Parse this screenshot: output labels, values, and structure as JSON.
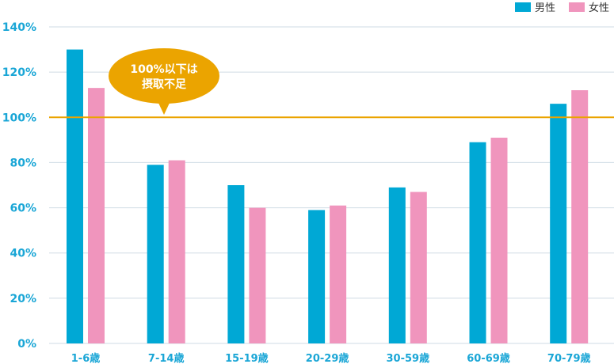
{
  "chart_data": {
    "type": "bar",
    "categories": [
      "1-6歳",
      "7-14歳",
      "15-19歳",
      "20-29歳",
      "30-59歳",
      "60-69歳",
      "70-79歳"
    ],
    "series": [
      {
        "name": "男性",
        "values": [
          130,
          79,
          70,
          59,
          69,
          89,
          106
        ]
      },
      {
        "name": "女性",
        "values": [
          113,
          81,
          60,
          61,
          67,
          91,
          112
        ]
      }
    ],
    "y_ticks": [
      "0%",
      "20%",
      "40%",
      "60%",
      "80%",
      "100%",
      "120%",
      "140%"
    ],
    "ylim": [
      0,
      140
    ],
    "grid": true,
    "legend_position": "top-right",
    "reference_line": {
      "value": 100
    },
    "annotation": {
      "line1": "100%以下は",
      "line2": "摂取不足"
    },
    "colors": {
      "male": "#00a8d5",
      "female": "#f095bd",
      "reference": "#eba400",
      "bubble": "#eba400",
      "axis_text": "#1aa6d6",
      "grid": "#cfdbe4"
    }
  }
}
